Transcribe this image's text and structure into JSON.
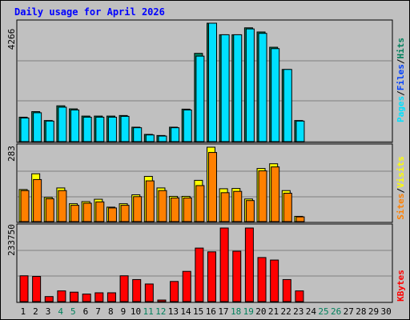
{
  "chart_data": {
    "type": "bar",
    "title": "Daily usage for April 2026",
    "x": [
      "1",
      "2",
      "3",
      "4",
      "5",
      "6",
      "7",
      "8",
      "9",
      "10",
      "11",
      "12",
      "13",
      "14",
      "15",
      "16",
      "17",
      "18",
      "19",
      "20",
      "21",
      "22",
      "23",
      "24",
      "25",
      "26",
      "27",
      "28",
      "29",
      "30"
    ],
    "weekend_days": [
      4,
      5,
      11,
      12,
      18,
      19,
      25,
      26
    ],
    "panels": [
      {
        "id": "pages-files-hits",
        "ymax": "4266",
        "ymax_value": 4266,
        "legend": [
          "Pages",
          "/",
          "Files",
          "/",
          "Hits"
        ],
        "series": [
          {
            "name": "Hits",
            "values": [
              880,
              1080,
              760,
              1290,
              1180,
              920,
              920,
              920,
              940,
              520,
              260,
              220,
              520,
              1170,
              3180,
              4266,
              3850,
              3850,
              4100,
              3950,
              3400,
              2600,
              760,
              0,
              0,
              0,
              0,
              0,
              0,
              0
            ]
          },
          {
            "name": "Files",
            "values": [
              850,
              1040,
              740,
              1240,
              1140,
              880,
              880,
              880,
              910,
              500,
              240,
              200,
              500,
              1140,
              3080,
              4266,
              3850,
              3850,
              4060,
              3900,
              3350,
              2600,
              740,
              0,
              0,
              0,
              0,
              0,
              0,
              0
            ]
          }
        ]
      },
      {
        "id": "visits-sites",
        "ymax": "283",
        "ymax_value": 283,
        "legend": [
          "Visits",
          "/",
          "Sites"
        ],
        "series": [
          {
            "name": "Visits",
            "values": [
              122,
              182,
              92,
              128,
              68,
              76,
              85,
              55,
              68,
              102,
              172,
              128,
              96,
              96,
              157,
              283,
              125,
              126,
              86,
              202,
              220,
              118,
              20,
              0,
              0,
              0,
              0,
              0,
              0,
              0
            ]
          },
          {
            "name": "Sites",
            "values": [
              118,
              160,
              87,
              118,
              62,
              70,
              75,
              52,
              62,
              95,
              155,
              118,
              90,
              90,
              137,
              263,
              110,
              115,
              80,
              193,
              208,
              108,
              18,
              0,
              0,
              0,
              0,
              0,
              0,
              0
            ]
          }
        ]
      },
      {
        "id": "kbytes",
        "ymax": "233750",
        "ymax_value": 233750,
        "legend": [
          "KBytes"
        ],
        "series": [
          {
            "name": "KBytes",
            "values": [
              82000,
              80000,
              16000,
              34000,
              30000,
              24000,
              28000,
              28000,
              82000,
              70000,
              56000,
              5000,
              64000,
              96000,
              170000,
              158000,
              233750,
              160000,
              233750,
              140000,
              132000,
              70000,
              34000,
              0,
              0,
              0,
              0,
              0,
              0,
              0
            ]
          }
        ]
      }
    ],
    "colors": {
      "hits": "#00805c",
      "files": "#0040ff",
      "pages": "#00e0ff",
      "visits": "#ffff00",
      "sites": "#ff8000",
      "kbytes": "#ff0000",
      "title": "#0000ff",
      "weekend_label": "#00805c",
      "weekday_label": "#000000",
      "plot_bg": "#c0c0c0",
      "page_bg": "#c0c0c0",
      "frame_dark": "#000000"
    }
  }
}
